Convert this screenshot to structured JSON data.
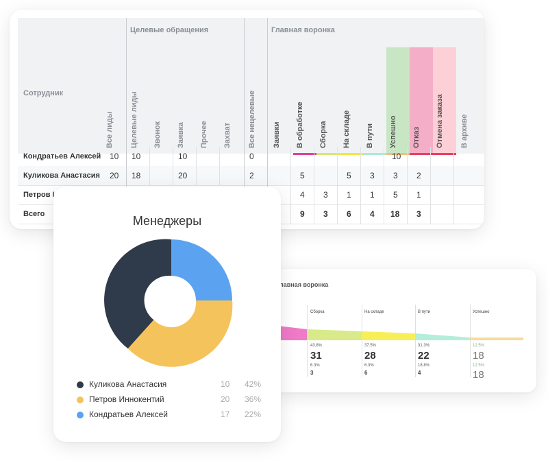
{
  "table": {
    "group_target": "Целевые обращения",
    "group_funnel": "Главная воронка",
    "col_employee": "Сотрудник",
    "columns": [
      "Все лиды",
      "Целевые лиды",
      "Звонок",
      "Заявка",
      "Прочее",
      "Захват",
      "Все нецелевые",
      "Заявки",
      "В обработке",
      "Сборка",
      "На складе",
      "В пути",
      "Успешно",
      "Отказ",
      "Отмена заказа",
      "В архиве"
    ],
    "rows": [
      {
        "name": "Кондратьев Алексей",
        "cells": [
          "10",
          "10",
          "",
          "10",
          "",
          "",
          "0",
          "",
          "",
          "",
          "",
          "",
          "10",
          "",
          "",
          ""
        ]
      },
      {
        "name": "Куликова Анастасия",
        "cells": [
          "20",
          "18",
          "",
          "20",
          "",
          "",
          "2",
          "",
          "5",
          "",
          "5",
          "3",
          "3",
          "2",
          "",
          ""
        ]
      },
      {
        "name": "Петров И",
        "cells": [
          "",
          "",
          "",
          "",
          "",
          "",
          "",
          "",
          "4",
          "3",
          "1",
          "1",
          "5",
          "1",
          "",
          ""
        ]
      },
      {
        "name": "Всего",
        "cells": [
          "",
          "",
          "",
          "",
          "",
          "",
          "",
          "",
          "9",
          "3",
          "6",
          "4",
          "18",
          "3",
          "",
          ""
        ]
      }
    ],
    "colors": {
      "processing": "#e040a0",
      "assembly": "#d4e87a",
      "warehouse": "#f5e642",
      "transit": "#a8ecd6",
      "success": "#c8e6c4",
      "reject": "#f5aec8",
      "cancel": "#fcd0d6"
    }
  },
  "funnel": {
    "title": "лавная воронка",
    "stages": [
      {
        "label": "Сборка",
        "pct1": "43.8%",
        "big": "31",
        "pct2": "6.3%",
        "small": "3"
      },
      {
        "label": "На складе",
        "pct1": "37.5%",
        "big": "28",
        "pct2": "6.3%",
        "small": "6"
      },
      {
        "label": "В пути",
        "pct1": "31.3%",
        "big": "22",
        "pct2": "18.8%",
        "small": "4"
      },
      {
        "label": "Успешно",
        "pct1": "12.5%",
        "big": "18",
        "pct2": "12.5%",
        "small": "18"
      }
    ],
    "colors": {
      "pink": "#ee7ac8",
      "lime": "#d8ea8a",
      "yellow": "#f7ef5a",
      "mint": "#b4eedb",
      "sand": "#f5dc9a"
    }
  },
  "chart": {
    "title": "Менеджеры",
    "legend": [
      {
        "name": "Куликова Анастасия",
        "count": "10",
        "pct": "42%",
        "color": "#2f3a4a"
      },
      {
        "name": "Петров Иннокентий",
        "count": "20",
        "pct": "36%",
        "color": "#f5c35c"
      },
      {
        "name": "Кондратьев Алексей",
        "count": "17",
        "pct": "22%",
        "color": "#5ba3f0"
      }
    ]
  }
}
